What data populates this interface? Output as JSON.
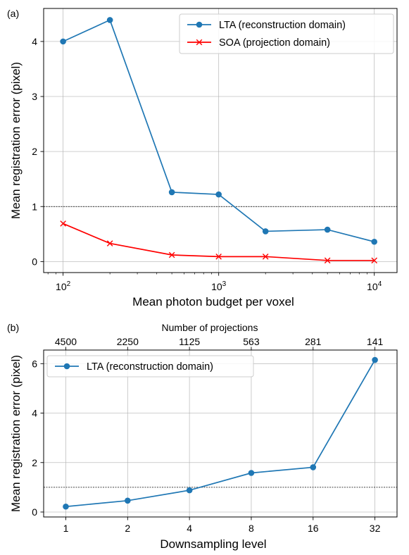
{
  "chart_data": [
    {
      "panel_label": "(a)",
      "type": "line",
      "xscale": "log",
      "xlabel": "Mean photon budget per voxel",
      "ylabel": "Mean registration error (pixel)",
      "xlim": [
        75,
        14000
      ],
      "ylim": [
        -0.2,
        4.6
      ],
      "x_ticks": [
        100,
        1000,
        10000
      ],
      "x_tick_labels": [
        {
          "base": "10",
          "exp": "2"
        },
        {
          "base": "10",
          "exp": "3"
        },
        {
          "base": "10",
          "exp": "4"
        }
      ],
      "y_ticks": [
        0,
        1,
        2,
        3,
        4
      ],
      "y_tick_labels": [
        "0",
        "1",
        "2",
        "3",
        "4"
      ],
      "grid": true,
      "reference_line": {
        "y": 1,
        "style": "dotted",
        "color": "#000000"
      },
      "legend_position": "top-right",
      "series": [
        {
          "name": "LTA (reconstruction domain)",
          "color": "#1f77b4",
          "marker": "circle",
          "x": [
            100,
            200,
            500,
            1000,
            2000,
            5000,
            10000
          ],
          "y": [
            4.0,
            4.39,
            1.26,
            1.22,
            0.55,
            0.58,
            0.36
          ]
        },
        {
          "name": "SOA (projection domain)",
          "color": "#ff0000",
          "marker": "x",
          "x": [
            100,
            200,
            500,
            1000,
            2000,
            5000,
            10000
          ],
          "y": [
            0.69,
            0.33,
            0.12,
            0.09,
            0.09,
            0.02,
            0.02
          ]
        }
      ]
    },
    {
      "panel_label": "(b)",
      "type": "line",
      "xscale": "log2",
      "xlabel": "Downsampling level",
      "ylabel": "Mean registration error (pixel)",
      "top_xlabel": "Number of projections",
      "xlim": [
        0.78,
        41
      ],
      "ylim": [
        -0.2,
        6.55
      ],
      "x_ticks": [
        1,
        2,
        4,
        8,
        16,
        32
      ],
      "x_tick_labels": [
        "1",
        "2",
        "4",
        "8",
        "16",
        "32"
      ],
      "top_x_tick_labels": [
        "4500",
        "2250",
        "1125",
        "563",
        "281",
        "141"
      ],
      "y_ticks": [
        0,
        2,
        4,
        6
      ],
      "y_tick_labels": [
        "0",
        "2",
        "4",
        "6"
      ],
      "grid": true,
      "reference_line": {
        "y": 1,
        "style": "dotted",
        "color": "#000000"
      },
      "legend_position": "top-left",
      "series": [
        {
          "name": "LTA (reconstruction domain)",
          "color": "#1f77b4",
          "marker": "circle",
          "x": [
            1,
            2,
            4,
            8,
            16,
            32
          ],
          "y": [
            0.22,
            0.46,
            0.88,
            1.58,
            1.81,
            6.15
          ]
        }
      ]
    }
  ]
}
